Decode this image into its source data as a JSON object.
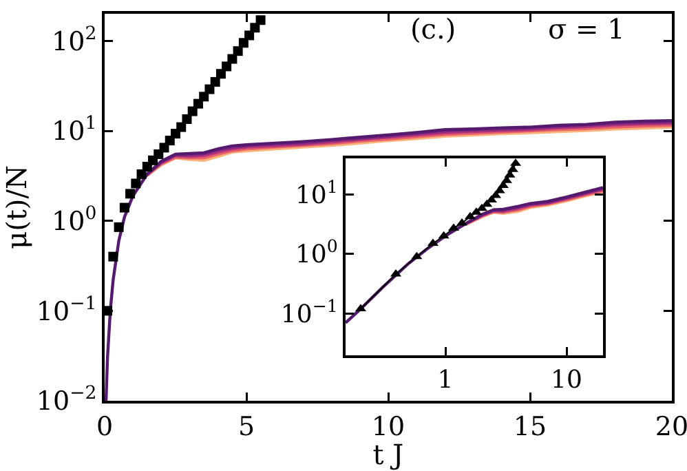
{
  "chart_data": [
    {
      "type": "line",
      "xlabel": "t J",
      "ylabel": "μ(t)/N",
      "annotations": [
        "(c.)",
        "σ = 1"
      ],
      "log": "y",
      "xlim": [
        0,
        20
      ],
      "xticks": [
        0,
        5,
        10,
        15,
        20
      ],
      "ylim": [
        0.01,
        200
      ],
      "yticks": [
        {
          "value": 0.01,
          "label": "10$^{−2}$"
        },
        {
          "value": 0.1,
          "label": "10$^{−1}$"
        },
        {
          "value": 1,
          "label": "10$^{0}$"
        },
        {
          "value": 10,
          "label": "10$^{1}$"
        },
        {
          "value": 100,
          "label": "10$^{2}$"
        }
      ],
      "grid": false,
      "series": [
        {
          "type": "line",
          "marker": "none",
          "color": "#fcb47a",
          "x": [
            1.5,
            2,
            2.5,
            3,
            3.5,
            4,
            4.5,
            5,
            6,
            7,
            8,
            9,
            10,
            11,
            12,
            13,
            14,
            15,
            16,
            17,
            18,
            19,
            20
          ],
          "values": [
            3.2,
            4.2,
            5.0,
            4.8,
            4.7,
            5.2,
            5.8,
            6,
            6.3,
            6.6,
            6.9,
            7.3,
            7.8,
            8.2,
            8.7,
            9,
            9.3,
            9.5,
            9.8,
            10.1,
            10.5,
            10.7,
            11
          ]
        },
        {
          "type": "line",
          "marker": "none",
          "color": "#e9636a",
          "x": [
            1.5,
            2,
            2.5,
            3,
            3.5,
            4,
            4.5,
            5,
            6,
            7,
            8,
            9,
            10,
            11,
            12,
            13,
            14,
            15,
            16,
            17,
            18,
            19,
            20
          ],
          "values": [
            3.2,
            4.3,
            5.1,
            5.0,
            5.0,
            5.5,
            6,
            6.3,
            6.6,
            6.9,
            7.2,
            7.7,
            8.1,
            8.6,
            9.1,
            9.4,
            9.7,
            10,
            10.3,
            10.6,
            11,
            11.3,
            11.5
          ]
        },
        {
          "type": "line",
          "marker": "none",
          "color": "#b93779",
          "x": [
            1.5,
            2,
            2.5,
            3,
            3.5,
            4,
            4.5,
            5,
            6,
            7,
            8,
            9,
            10,
            11,
            12,
            13,
            14,
            15,
            16,
            17,
            18,
            19,
            20
          ],
          "values": [
            3.3,
            4.4,
            5.3,
            5.2,
            5.3,
            5.8,
            6.3,
            6.6,
            6.8,
            7.1,
            7.5,
            8,
            8.5,
            9,
            9.5,
            9.8,
            10.1,
            10.3,
            10.8,
            11.1,
            11.6,
            11.9,
            12.1
          ]
        },
        {
          "type": "line",
          "marker": "none",
          "color": "#872781",
          "x": [
            1.5,
            2,
            2.5,
            3,
            3.5,
            4,
            4.5,
            5,
            6,
            7,
            8,
            9,
            10,
            11,
            12,
            13,
            14,
            15,
            16,
            17,
            18,
            19,
            20
          ],
          "values": [
            3.3,
            4.5,
            5.4,
            5.4,
            5.5,
            6.1,
            6.5,
            6.8,
            7.1,
            7.3,
            7.8,
            8.2,
            8.7,
            9.3,
            9.9,
            10.2,
            10.4,
            10.7,
            11.1,
            11.5,
            12,
            12.3,
            12.5
          ]
        },
        {
          "type": "line",
          "marker": "none",
          "color": "#55196e",
          "x": [
            0.05,
            0.1,
            0.2,
            0.3,
            0.5,
            0.7,
            1,
            1.5,
            2,
            2.5,
            3,
            3.5,
            4,
            4.5,
            5,
            6,
            7,
            8,
            9,
            10,
            11,
            12,
            13,
            14,
            15,
            16,
            17,
            18,
            19,
            20
          ],
          "values": [
            0.01,
            0.03,
            0.1,
            0.22,
            0.6,
            1.1,
            1.9,
            3.3,
            4.6,
            5.5,
            5.6,
            5.7,
            6.3,
            6.8,
            7,
            7.3,
            7.6,
            8,
            8.5,
            9,
            9.6,
            10.3,
            10.5,
            10.8,
            11,
            11.5,
            11.8,
            12.5,
            12.8,
            13
          ]
        },
        {
          "type": "scatter",
          "marker": "square",
          "color": "#000000",
          "x": [
            0.1,
            0.3,
            0.5,
            0.7,
            0.9,
            1.1,
            1.3,
            1.5,
            1.7,
            1.9,
            2.1,
            2.3,
            2.5,
            2.7,
            2.9,
            3.1,
            3.3,
            3.5,
            3.7,
            3.9,
            4.1,
            4.3,
            4.5,
            4.7,
            4.9,
            5.1,
            5.3,
            5.5
          ],
          "values": [
            0.1,
            0.4,
            0.85,
            1.4,
            2.0,
            2.6,
            3.3,
            4.0,
            4.7,
            5.5,
            6.5,
            7.8,
            9.3,
            11,
            13.5,
            16.5,
            20,
            24,
            29,
            35,
            43,
            52,
            63,
            77,
            95,
            115,
            140,
            170
          ]
        }
      ]
    },
    {
      "type": "line",
      "log": "xy",
      "xlim": [
        0.15,
        20
      ],
      "xticks": [
        1,
        10
      ],
      "ylim": [
        0.02,
        40
      ],
      "yticks": [
        {
          "value": 0.1,
          "label": "10$^{−1}$"
        },
        {
          "value": 1,
          "label": "10$^{0}$"
        },
        {
          "value": 10,
          "label": "10$^{1}$"
        }
      ],
      "grid": false,
      "series": [
        {
          "type": "line",
          "marker": "none",
          "color": "#fcb47a",
          "x": [
            1.5,
            2,
            2.5,
            3,
            4,
            5,
            7,
            10,
            14,
            20
          ],
          "values": [
            3.2,
            4.2,
            5.0,
            4.8,
            5.2,
            6,
            6.6,
            7.8,
            9.3,
            11
          ]
        },
        {
          "type": "line",
          "marker": "none",
          "color": "#e9636a",
          "x": [
            1.5,
            2,
            2.5,
            3,
            4,
            5,
            7,
            10,
            14,
            20
          ],
          "values": [
            3.2,
            4.3,
            5.1,
            5.0,
            5.5,
            6.3,
            6.9,
            8.1,
            9.7,
            11.5
          ]
        },
        {
          "type": "line",
          "marker": "none",
          "color": "#b93779",
          "x": [
            1.5,
            2,
            2.5,
            3,
            4,
            5,
            7,
            10,
            14,
            20
          ],
          "values": [
            3.3,
            4.4,
            5.3,
            5.2,
            5.8,
            6.6,
            7.1,
            8.5,
            10.1,
            12.1
          ]
        },
        {
          "type": "line",
          "marker": "none",
          "color": "#872781",
          "x": [
            1.5,
            2,
            2.5,
            3,
            4,
            5,
            7,
            10,
            14,
            20
          ],
          "values": [
            3.3,
            4.5,
            5.4,
            5.4,
            6.1,
            6.8,
            7.3,
            8.7,
            10.4,
            12.5
          ]
        },
        {
          "type": "line",
          "marker": "none",
          "color": "#55196e",
          "x": [
            0.15,
            0.2,
            0.3,
            0.5,
            0.7,
            1,
            1.5,
            2,
            2.5,
            3,
            4,
            5,
            7,
            10,
            14,
            20
          ],
          "values": [
            0.07,
            0.12,
            0.27,
            0.7,
            1.2,
            2,
            3.3,
            4.6,
            5.5,
            5.6,
            6.3,
            7,
            7.6,
            9,
            10.8,
            13
          ]
        },
        {
          "type": "line",
          "marker": "triangle",
          "color": "#000000",
          "x": [
            0.2,
            0.39,
            0.58,
            0.79,
            0.97,
            1.17,
            1.37,
            1.6,
            1.8,
            2,
            2.2,
            2.4,
            2.6,
            2.8,
            3,
            3.2,
            3.4,
            3.6,
            3.8
          ],
          "values": [
            0.12,
            0.46,
            0.9,
            1.5,
            2.0,
            2.7,
            3.3,
            4.2,
            5,
            5.8,
            6.8,
            8,
            9.5,
            11.5,
            14,
            17,
            21,
            26,
            33
          ]
        }
      ]
    }
  ]
}
